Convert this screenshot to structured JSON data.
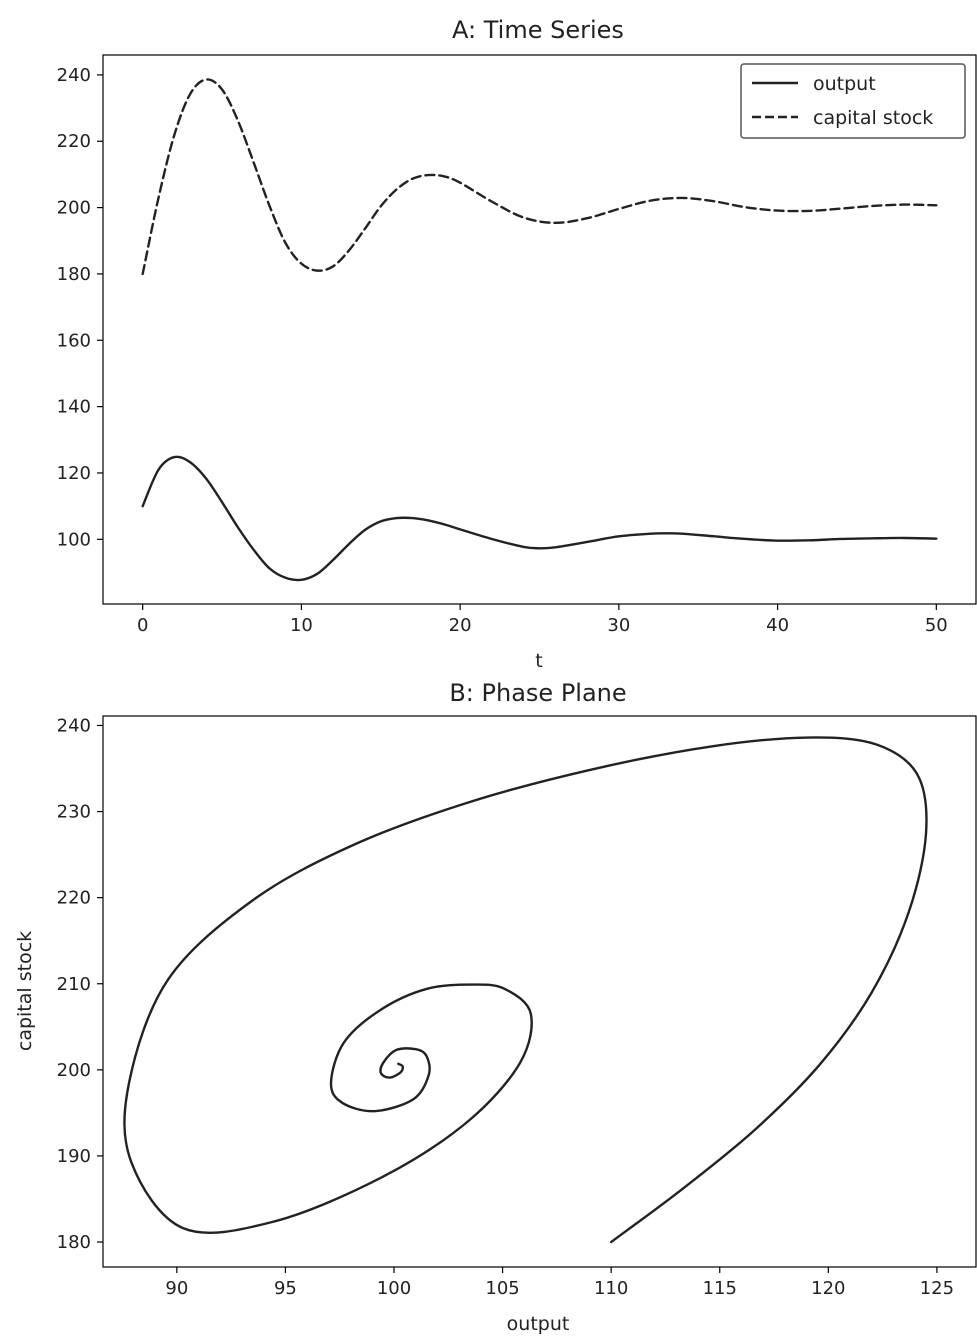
{
  "chart_data": [
    {
      "type": "line",
      "title": "A: Time Series",
      "xlabel": "t",
      "ylabel": "",
      "xlim": [
        -2.5,
        52.5
      ],
      "ylim": [
        80.5,
        246
      ],
      "xticks": [
        0,
        10,
        20,
        30,
        40,
        50
      ],
      "yticks": [
        100,
        120,
        140,
        160,
        180,
        200,
        220,
        240
      ],
      "grid": false,
      "legend": "top-right",
      "series": [
        {
          "name": "output",
          "style": "solid",
          "color": "#222222",
          "x": [
            0,
            1,
            2,
            3,
            4,
            5,
            6,
            7,
            8,
            9,
            10,
            11,
            12,
            13,
            14,
            15,
            16,
            17,
            18,
            19,
            20,
            22,
            24,
            25,
            26,
            28,
            30,
            32,
            33,
            34,
            36,
            38,
            40,
            42,
            44,
            46,
            48,
            50
          ],
          "y": [
            110,
            121,
            124.8,
            123.2,
            118.3,
            111.2,
            103.6,
            96.8,
            91.2,
            88.4,
            87.8,
            89.6,
            93.8,
            98.6,
            102.8,
            105.4,
            106.4,
            106.4,
            105.7,
            104.5,
            103,
            100.1,
            97.7,
            97.3,
            97.6,
            99.2,
            100.9,
            101.7,
            101.8,
            101.7,
            100.9,
            100.1,
            99.6,
            99.7,
            100.1,
            100.3,
            100.4,
            100.2
          ]
        },
        {
          "name": "capital stock",
          "style": "dashed",
          "color": "#222222",
          "x": [
            0,
            1,
            2,
            3,
            4,
            5,
            6,
            7,
            8,
            9,
            10,
            11,
            12,
            13,
            14,
            15,
            16,
            17,
            18,
            19,
            20,
            22,
            24,
            26,
            28,
            30,
            32,
            34,
            36,
            38,
            40,
            42,
            44,
            46,
            48,
            50
          ],
          "y": [
            180,
            203,
            222,
            234.3,
            238.6,
            235.6,
            226.2,
            213.5,
            200.4,
            189.3,
            183.1,
            181,
            182.3,
            187.1,
            193.6,
            200.4,
            205.5,
            208.7,
            209.8,
            209.4,
            207.5,
            201.8,
            197,
            195.4,
            196.8,
            199.6,
            202.1,
            202.9,
            201.9,
            200.1,
            199.1,
            199,
            199.7,
            200.5,
            200.9,
            200.7
          ]
        }
      ]
    },
    {
      "type": "line",
      "title": "B: Phase Plane",
      "xlabel": "output",
      "ylabel": "capital stock",
      "xlim": [
        86.6,
        126.8
      ],
      "ylim": [
        177.1,
        241.1
      ],
      "xticks": [
        90,
        95,
        100,
        105,
        110,
        115,
        120,
        125
      ],
      "yticks": [
        180,
        190,
        200,
        210,
        220,
        230,
        240
      ],
      "grid": false,
      "series": [
        {
          "style": "solid",
          "color": "#222222",
          "x": [
            110,
            113.3,
            116.6,
            119.6,
            122,
            123.7,
            124.5,
            124.1,
            122.2,
            119.1,
            114.7,
            109.3,
            103.6,
            98.2,
            93.5,
            89.6,
            87.8,
            87.9,
            90.3,
            94.5,
            99.5,
            103.4,
            105.8,
            106.3,
            105.1,
            103.6,
            101.5,
            99.4,
            97.7,
            97.1,
            97.6,
            99.1,
            100.9,
            101.6,
            101.5,
            101,
            100.1,
            99.5,
            99.4,
            99.8,
            100.3,
            100.4,
            100.2
          ],
          "y": [
            180,
            186.2,
            193,
            200.6,
            209,
            218.3,
            227.5,
            234.3,
            237.8,
            238.6,
            237.6,
            235,
            231.2,
            226.2,
            219.7,
            210.5,
            198.5,
            189.3,
            181.6,
            182.4,
            187.6,
            194,
            200.8,
            206.5,
            209.4,
            209.9,
            209.4,
            207,
            203.2,
            198.5,
            196.2,
            195.2,
            196.6,
            199.4,
            201.6,
            202.4,
            202.3,
            200.8,
            199.6,
            199.1,
            199.7,
            200.4,
            200.7
          ]
        }
      ]
    }
  ]
}
